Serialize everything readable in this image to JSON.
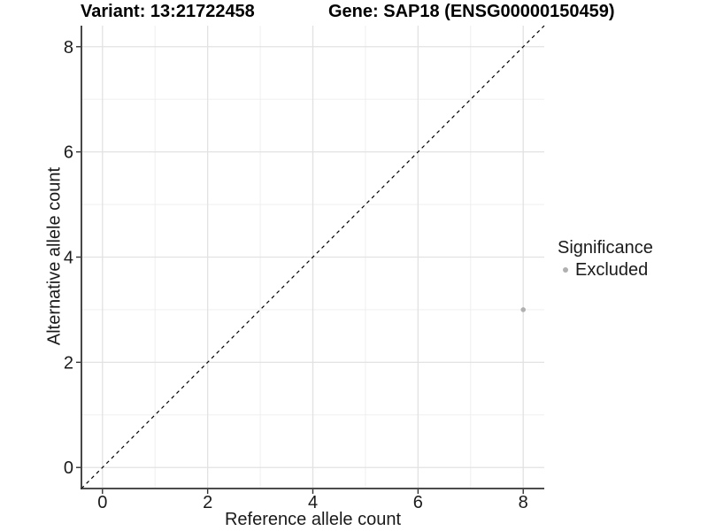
{
  "chart_data": {
    "type": "scatter",
    "title_left": "Variant: 13:21722458",
    "title_right": "Gene: SAP18 (ENSG00000150459)",
    "xlabel": "Reference allele count",
    "ylabel": "Alternative allele count",
    "xlim": [
      -0.4,
      8.4
    ],
    "ylim": [
      -0.4,
      8.4
    ],
    "x_ticks": [
      0,
      2,
      4,
      6,
      8
    ],
    "y_ticks": [
      0,
      2,
      4,
      6,
      8
    ],
    "x_minor": [
      1,
      3,
      5,
      7
    ],
    "y_minor": [
      1,
      3,
      5,
      7
    ],
    "grid": true,
    "reference_line": {
      "slope": 1,
      "intercept": 0,
      "style": "dashed",
      "color": "#000000"
    },
    "series": [
      {
        "name": "Excluded",
        "color": "#b0b0b0",
        "points": [
          {
            "x": 8,
            "y": 3
          }
        ]
      }
    ],
    "legend": {
      "title": "Significance",
      "position": "right",
      "items": [
        {
          "label": "Excluded",
          "color": "#b0b0b0"
        }
      ]
    },
    "colors": {
      "background": "#ffffff",
      "major_grid": "#e2e2e2",
      "minor_grid": "#ededed",
      "axis_line": "#333333",
      "tick_label": "#1a1a1a",
      "title_text": "#000000"
    }
  }
}
